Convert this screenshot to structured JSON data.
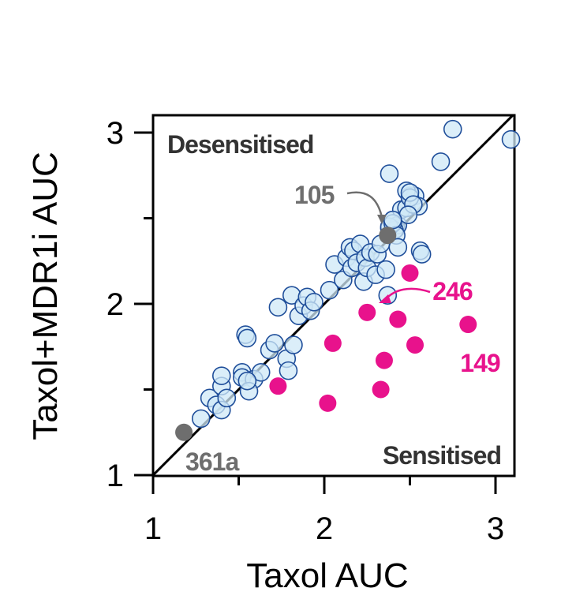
{
  "chart_data": {
    "type": "scatter",
    "xlabel": "Taxol AUC",
    "ylabel": "Taxol+MDR1i AUC",
    "xlim": [
      1,
      3.1
    ],
    "ylim": [
      1,
      3.1
    ],
    "xticks": [
      "1",
      "2",
      "3"
    ],
    "yticks": [
      "1",
      "2",
      "3"
    ],
    "grid": false,
    "identity_line": true,
    "region_labels": {
      "top": "Desensitised",
      "bottom": "Sensitised"
    },
    "colors": {
      "open": "#1f4e9a",
      "open_fill": "#cfe8f7",
      "highlight": "#e8128c",
      "reference": "#6e6e6e",
      "line": "#000000"
    },
    "series": [
      {
        "style": "open",
        "x": [
          1.28,
          1.33,
          1.37,
          1.4,
          1.4,
          1.43,
          1.4,
          1.52,
          1.52,
          1.54,
          1.55,
          1.59,
          1.63,
          1.68,
          1.71,
          1.73,
          1.78,
          1.79,
          1.82,
          1.81,
          1.85,
          1.88,
          1.9,
          1.92,
          1.94,
          2.03,
          2.06,
          2.11,
          2.13,
          2.15,
          2.16,
          2.17,
          2.19,
          2.21,
          2.23,
          2.24,
          2.25,
          2.27,
          2.3,
          2.31,
          2.33,
          2.36,
          2.38,
          2.4,
          2.42,
          2.43,
          2.45,
          2.48,
          2.5,
          2.53,
          2.55,
          1.56,
          1.55,
          2.38,
          2.48,
          2.5,
          2.5,
          2.52,
          2.68,
          2.75,
          3.09,
          2.49,
          2.41,
          2.38,
          2.4,
          2.42,
          2.37,
          2.4,
          2.56,
          2.57,
          2.43
        ],
        "y": [
          1.33,
          1.45,
          1.41,
          1.38,
          1.52,
          1.45,
          1.58,
          1.6,
          1.57,
          1.82,
          1.8,
          1.56,
          1.6,
          1.73,
          1.77,
          1.98,
          1.68,
          1.61,
          1.76,
          2.05,
          1.93,
          1.99,
          2.04,
          1.96,
          2.01,
          2.08,
          2.23,
          2.14,
          2.27,
          2.33,
          2.21,
          2.31,
          2.24,
          2.35,
          2.13,
          2.27,
          2.21,
          2.3,
          2.17,
          2.29,
          2.35,
          2.2,
          2.44,
          2.49,
          2.44,
          2.46,
          2.55,
          2.56,
          2.63,
          2.63,
          2.57,
          1.49,
          1.55,
          2.76,
          2.66,
          2.62,
          2.65,
          2.58,
          2.83,
          3.02,
          2.96,
          2.52,
          2.43,
          2.45,
          2.47,
          2.4,
          2.05,
          2.49,
          2.31,
          2.29,
          2.33
        ]
      },
      {
        "style": "highlight",
        "x": [
          1.73,
          2.02,
          2.05,
          2.25,
          2.33,
          2.35,
          2.43,
          2.5,
          2.53,
          2.84
        ],
        "y": [
          1.52,
          1.42,
          1.77,
          1.95,
          1.5,
          1.67,
          1.91,
          2.18,
          1.76,
          1.88
        ]
      },
      {
        "style": "reference",
        "x": [
          1.18,
          2.37
        ],
        "y": [
          1.25,
          2.4
        ]
      }
    ],
    "annotations": [
      {
        "text": "105",
        "x": 2.37,
        "y": 2.4,
        "color": "#6e6e6e"
      },
      {
        "text": "361a",
        "x": 1.18,
        "y": 1.25,
        "color": "#6e6e6e"
      },
      {
        "text": "246",
        "x": 2.25,
        "y": 1.95,
        "color": "#e8128c"
      },
      {
        "text": "149",
        "x": 2.84,
        "y": 1.88,
        "color": "#e8128c"
      }
    ]
  }
}
